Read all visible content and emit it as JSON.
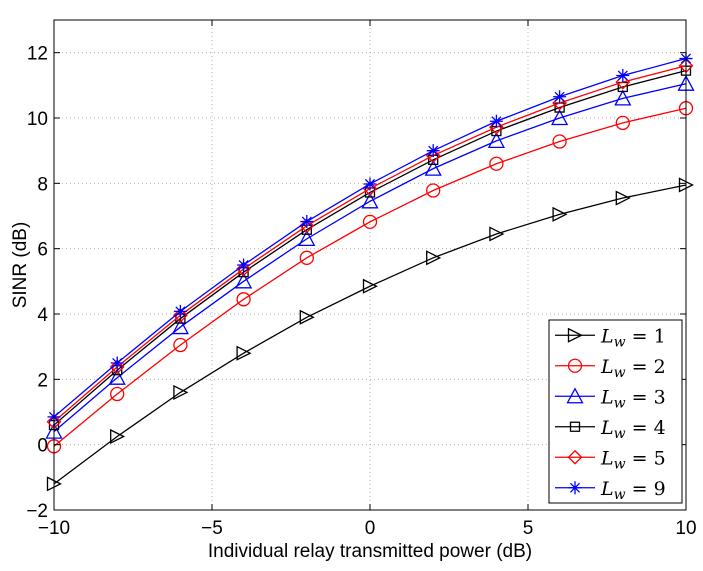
{
  "chart_data": {
    "type": "line",
    "title": "",
    "xlabel": "Individual relay transmitted power (dB)",
    "ylabel": "SINR (dB)",
    "xlim": [
      -10,
      10
    ],
    "ylim": [
      -2,
      13
    ],
    "xticks": [
      -10,
      -5,
      0,
      5,
      10
    ],
    "yticks": [
      -2,
      0,
      2,
      4,
      6,
      8,
      10,
      12
    ],
    "xtick_labels": [
      "−10",
      "−5",
      "0",
      "5",
      "10"
    ],
    "ytick_labels": [
      "−2",
      "0",
      "2",
      "4",
      "6",
      "8",
      "10",
      "12"
    ],
    "grid": true,
    "legend_position": "lower-right",
    "x": [
      -10,
      -8,
      -6,
      -4,
      -2,
      0,
      2,
      4,
      6,
      8,
      10
    ],
    "series": [
      {
        "name": "L_w = 1",
        "legend_var": "L",
        "legend_sub": "w",
        "legend_rest": " = 1",
        "color": "#000000",
        "marker": "triangle-right",
        "values": [
          -1.2,
          0.25,
          1.6,
          2.8,
          3.9,
          4.85,
          5.72,
          6.45,
          7.05,
          7.55,
          7.95
        ]
      },
      {
        "name": "L_w = 2",
        "legend_var": "L",
        "legend_sub": "w",
        "legend_rest": " = 2",
        "color": "#ff0000",
        "marker": "circle",
        "values": [
          -0.05,
          1.55,
          3.05,
          4.45,
          5.72,
          6.82,
          7.78,
          8.6,
          9.28,
          9.85,
          10.3
        ]
      },
      {
        "name": "L_w = 3",
        "legend_var": "L",
        "legend_sub": "w",
        "legend_rest": " = 3",
        "color": "#0000ff",
        "marker": "triangle-up",
        "values": [
          0.4,
          2.05,
          3.6,
          5.0,
          6.3,
          7.45,
          8.45,
          9.3,
          10.0,
          10.6,
          11.05
        ]
      },
      {
        "name": "L_w = 4",
        "legend_var": "L",
        "legend_sub": "w",
        "legend_rest": " = 4",
        "color": "#000000",
        "marker": "square",
        "values": [
          0.6,
          2.28,
          3.86,
          5.28,
          6.58,
          7.72,
          8.72,
          9.6,
          10.32,
          10.95,
          11.45
        ]
      },
      {
        "name": "L_w = 5",
        "legend_var": "L",
        "legend_sub": "w",
        "legend_rest": " = 5",
        "color": "#ff0000",
        "marker": "diamond",
        "values": [
          0.7,
          2.38,
          3.96,
          5.38,
          6.7,
          7.84,
          8.85,
          9.72,
          10.46,
          11.1,
          11.6
        ]
      },
      {
        "name": "L_w = 9",
        "legend_var": "L",
        "legend_sub": "w",
        "legend_rest": " = 9",
        "color": "#0000ff",
        "marker": "asterisk",
        "values": [
          0.85,
          2.5,
          4.08,
          5.5,
          6.83,
          7.98,
          9.0,
          9.9,
          10.65,
          11.3,
          11.82
        ]
      }
    ]
  }
}
